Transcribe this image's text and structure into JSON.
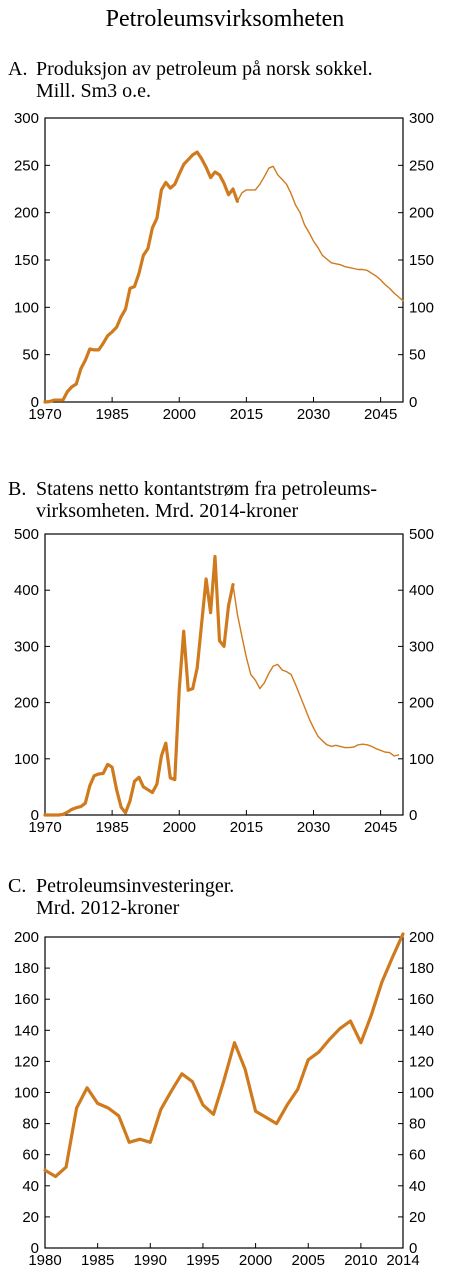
{
  "title": "Petroleumsvirksomheten",
  "chart_data": [
    {
      "id": "A",
      "type": "line",
      "title_letter": "A.",
      "title_lines": [
        "Produksjon av petroleum på norsk sokkel.",
        "Mill. Sm3 o.e."
      ],
      "xlim": [
        1970,
        2050
      ],
      "ylim": [
        0,
        300
      ],
      "xticks": [
        1970,
        1985,
        2000,
        2015,
        2030,
        2045
      ],
      "yticks": [
        0,
        50,
        100,
        150,
        200,
        250,
        300
      ],
      "line_color": "#d07a1e",
      "series": [
        {
          "style": "thick",
          "points": [
            [
              1970,
              0
            ],
            [
              1971,
              0.4
            ],
            [
              1972,
              2
            ],
            [
              1973,
              2
            ],
            [
              1974,
              2
            ],
            [
              1975,
              11
            ],
            [
              1976,
              16
            ],
            [
              1977,
              19
            ],
            [
              1978,
              35
            ],
            [
              1979,
              44
            ],
            [
              1980,
              56
            ],
            [
              1981,
              55
            ],
            [
              1982,
              55
            ],
            [
              1983,
              62
            ],
            [
              1984,
              70
            ],
            [
              1985,
              74
            ],
            [
              1986,
              79
            ],
            [
              1987,
              90
            ],
            [
              1988,
              98
            ],
            [
              1989,
              120
            ],
            [
              1990,
              122
            ],
            [
              1991,
              136
            ],
            [
              1992,
              155
            ],
            [
              1993,
              162
            ],
            [
              1994,
              184
            ],
            [
              1995,
              194
            ],
            [
              1996,
              224
            ],
            [
              1997,
              232
            ],
            [
              1998,
              226
            ],
            [
              1999,
              230
            ],
            [
              2000,
              241
            ],
            [
              2001,
              251
            ],
            [
              2002,
              256
            ],
            [
              2003,
              261
            ],
            [
              2004,
              264
            ],
            [
              2005,
              257
            ],
            [
              2006,
              248
            ],
            [
              2007,
              237
            ],
            [
              2008,
              243
            ],
            [
              2009,
              240
            ],
            [
              2010,
              231
            ],
            [
              2011,
              219
            ],
            [
              2012,
              225
            ],
            [
              2013,
              212
            ]
          ]
        },
        {
          "style": "thin",
          "points": [
            [
              2013,
              212
            ],
            [
              2014,
              221
            ],
            [
              2015,
              224
            ],
            [
              2016,
              224
            ],
            [
              2017,
              224
            ],
            [
              2018,
              230
            ],
            [
              2019,
              238
            ],
            [
              2020,
              247
            ],
            [
              2021,
              249
            ],
            [
              2022,
              240
            ],
            [
              2023,
              235
            ],
            [
              2024,
              230
            ],
            [
              2025,
              220
            ],
            [
              2026,
              208
            ],
            [
              2027,
              200
            ],
            [
              2028,
              187
            ],
            [
              2029,
              179
            ],
            [
              2030,
              170
            ],
            [
              2031,
              163
            ],
            [
              2032,
              155
            ],
            [
              2033,
              151
            ],
            [
              2034,
              147
            ],
            [
              2035,
              146
            ],
            [
              2036,
              145
            ],
            [
              2037,
              143
            ],
            [
              2038,
              142
            ],
            [
              2039,
              141
            ],
            [
              2040,
              140
            ],
            [
              2041,
              140
            ],
            [
              2042,
              139
            ],
            [
              2043,
              136
            ],
            [
              2044,
              133
            ],
            [
              2045,
              129
            ],
            [
              2046,
              124
            ],
            [
              2047,
              120
            ],
            [
              2048,
              115
            ],
            [
              2049,
              111
            ],
            [
              2050,
              107
            ]
          ]
        }
      ]
    },
    {
      "id": "B",
      "type": "line",
      "title_letter": "B.",
      "title_lines": [
        "Statens netto kontantstrøm fra petroleums-",
        "virksomheten. Mrd. 2014-kroner"
      ],
      "xlim": [
        1970,
        2050
      ],
      "ylim": [
        0,
        500
      ],
      "xticks": [
        1970,
        1985,
        2000,
        2015,
        2030,
        2045
      ],
      "yticks": [
        0,
        100,
        200,
        300,
        400,
        500
      ],
      "line_color": "#d07a1e",
      "series": [
        {
          "style": "thick",
          "points": [
            [
              1970,
              0
            ],
            [
              1971,
              0
            ],
            [
              1972,
              0
            ],
            [
              1973,
              0
            ],
            [
              1974,
              1
            ],
            [
              1975,
              5
            ],
            [
              1976,
              10
            ],
            [
              1977,
              13
            ],
            [
              1978,
              15
            ],
            [
              1979,
              21
            ],
            [
              1980,
              52
            ],
            [
              1981,
              70
            ],
            [
              1982,
              73
            ],
            [
              1983,
              74
            ],
            [
              1984,
              90
            ],
            [
              1985,
              85
            ],
            [
              1986,
              45
            ],
            [
              1987,
              14
            ],
            [
              1988,
              4
            ],
            [
              1989,
              25
            ],
            [
              1990,
              60
            ],
            [
              1991,
              67
            ],
            [
              1992,
              50
            ],
            [
              1993,
              45
            ],
            [
              1994,
              40
            ],
            [
              1995,
              55
            ],
            [
              1996,
              105
            ],
            [
              1997,
              128
            ],
            [
              1998,
              66
            ],
            [
              1999,
              63
            ],
            [
              2000,
              225
            ],
            [
              2001,
              327
            ],
            [
              2002,
              222
            ],
            [
              2003,
              225
            ],
            [
              2004,
              262
            ],
            [
              2005,
              340
            ],
            [
              2006,
              420
            ],
            [
              2007,
              360
            ],
            [
              2008,
              460
            ],
            [
              2009,
              310
            ],
            [
              2010,
              300
            ],
            [
              2011,
              372
            ],
            [
              2012,
              410
            ]
          ]
        },
        {
          "style": "thin",
          "points": [
            [
              2012,
              410
            ],
            [
              2013,
              357
            ],
            [
              2014,
              318
            ],
            [
              2015,
              280
            ],
            [
              2016,
              250
            ],
            [
              2017,
              240
            ],
            [
              2018,
              225
            ],
            [
              2019,
              235
            ],
            [
              2020,
              252
            ],
            [
              2021,
              265
            ],
            [
              2022,
              268
            ],
            [
              2023,
              258
            ],
            [
              2024,
              255
            ],
            [
              2025,
              250
            ],
            [
              2026,
              232
            ],
            [
              2027,
              212
            ],
            [
              2028,
              192
            ],
            [
              2029,
              172
            ],
            [
              2030,
              155
            ],
            [
              2031,
              140
            ],
            [
              2032,
              132
            ],
            [
              2033,
              125
            ],
            [
              2034,
              122
            ],
            [
              2035,
              124
            ],
            [
              2036,
              122
            ],
            [
              2037,
              120
            ],
            [
              2038,
              120
            ],
            [
              2039,
              121
            ],
            [
              2040,
              125
            ],
            [
              2041,
              126
            ],
            [
              2042,
              125
            ],
            [
              2043,
              122
            ],
            [
              2044,
              118
            ],
            [
              2045,
              115
            ],
            [
              2046,
              112
            ],
            [
              2047,
              111
            ],
            [
              2048,
              105
            ],
            [
              2049,
              107
            ]
          ]
        }
      ]
    },
    {
      "id": "C",
      "type": "line",
      "title_letter": "C.",
      "title_lines": [
        "Petroleumsinvesteringer.",
        "Mrd. 2012-kroner"
      ],
      "xlim": [
        1980,
        2014
      ],
      "ylim": [
        0,
        200
      ],
      "xticks": [
        1980,
        1985,
        1990,
        1995,
        2000,
        2005,
        2010,
        2014
      ],
      "yticks": [
        0,
        20,
        40,
        60,
        80,
        100,
        120,
        140,
        160,
        180,
        200
      ],
      "line_color": "#d07a1e",
      "series": [
        {
          "style": "thick",
          "points": [
            [
              1980,
              50
            ],
            [
              1981,
              46
            ],
            [
              1982,
              52
            ],
            [
              1983,
              90
            ],
            [
              1984,
              103
            ],
            [
              1985,
              93
            ],
            [
              1986,
              90
            ],
            [
              1987,
              85
            ],
            [
              1988,
              68
            ],
            [
              1989,
              70
            ],
            [
              1990,
              68
            ],
            [
              1991,
              89
            ],
            [
              1992,
              101
            ],
            [
              1993,
              112
            ],
            [
              1994,
              107
            ],
            [
              1995,
              92
            ],
            [
              1996,
              86
            ],
            [
              1997,
              108
            ],
            [
              1998,
              132
            ],
            [
              1999,
              115
            ],
            [
              2000,
              88
            ],
            [
              2001,
              84
            ],
            [
              2002,
              80
            ],
            [
              2003,
              92
            ],
            [
              2004,
              102
            ],
            [
              2005,
              121
            ],
            [
              2006,
              126
            ],
            [
              2007,
              134
            ],
            [
              2008,
              141
            ],
            [
              2009,
              146
            ],
            [
              2010,
              132
            ],
            [
              2011,
              150
            ],
            [
              2012,
              171
            ],
            [
              2013,
              187
            ],
            [
              2014,
              202
            ]
          ]
        }
      ]
    }
  ]
}
